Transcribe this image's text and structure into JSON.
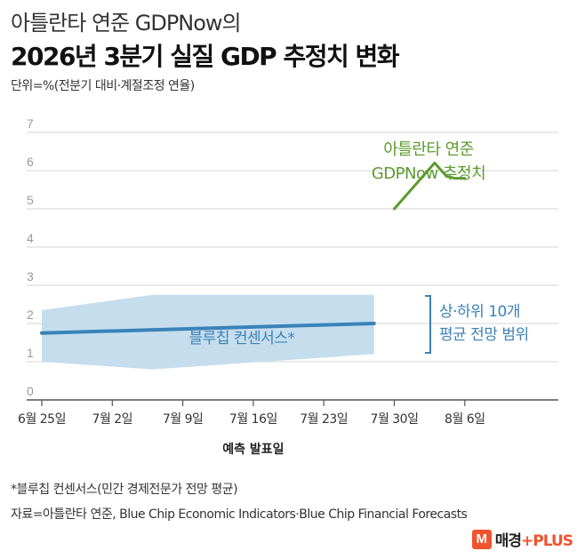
{
  "header": {
    "title_line1": "아틀란타 연준 GDPNow의",
    "title_line2": "2026년 3분기 실질 GDP 추정치 변화",
    "unit": "단위=%(전분기 대비·계절조정 연율)"
  },
  "footer": {
    "note": "*블루칩 컨센서스(민간 경제전문가 전망 평균)",
    "source": "자료=아틀란타 연준, Blue Chip Economic Indicators·Blue Chip Financial Forecasts",
    "logo_mark": "M",
    "logo_text": "매경",
    "logo_plus": "+PLUS"
  },
  "colors": {
    "gdpnow": "#5c9b2e",
    "consensus": "#3a82b8",
    "band": "#c6dded",
    "grid": "#d4d4d4",
    "axis": "#555555"
  },
  "chart_data": {
    "type": "line",
    "xlabel": "예측 발표일",
    "ylabel": "",
    "ylim": [
      0,
      7
    ],
    "yticks": [
      "0",
      "1",
      "2",
      "3",
      "4",
      "5",
      "6",
      "7"
    ],
    "xticks": [
      "6월 25일",
      "7월 2일",
      "7월 9일",
      "7월 16일",
      "7월 23일",
      "7월 30일",
      "8월 6일"
    ],
    "grid": true,
    "series": [
      {
        "name": "아틀란타 연준 GDPNow 추정치",
        "label_lines": [
          "아틀란타 연준",
          "GDPNow 추정치"
        ],
        "color": "#5c9b2e",
        "points": [
          [
            35,
            5.0
          ],
          [
            39,
            6.2
          ],
          [
            40.2,
            5.85
          ],
          [
            41,
            5.8
          ],
          [
            42,
            5.8
          ]
        ]
      },
      {
        "name": "블루칩 컨센서스*",
        "color": "#3a82b8",
        "points": [
          [
            0,
            1.75
          ],
          [
            33,
            2.0
          ]
        ]
      }
    ],
    "band": {
      "label_lines": [
        "상·하위 10개",
        "평균 전망 범위"
      ],
      "upper": [
        [
          0,
          2.35
        ],
        [
          11,
          2.75
        ],
        [
          33,
          2.75
        ]
      ],
      "lower": [
        [
          0,
          1.0
        ],
        [
          11,
          0.8
        ],
        [
          33,
          1.2
        ]
      ]
    }
  }
}
